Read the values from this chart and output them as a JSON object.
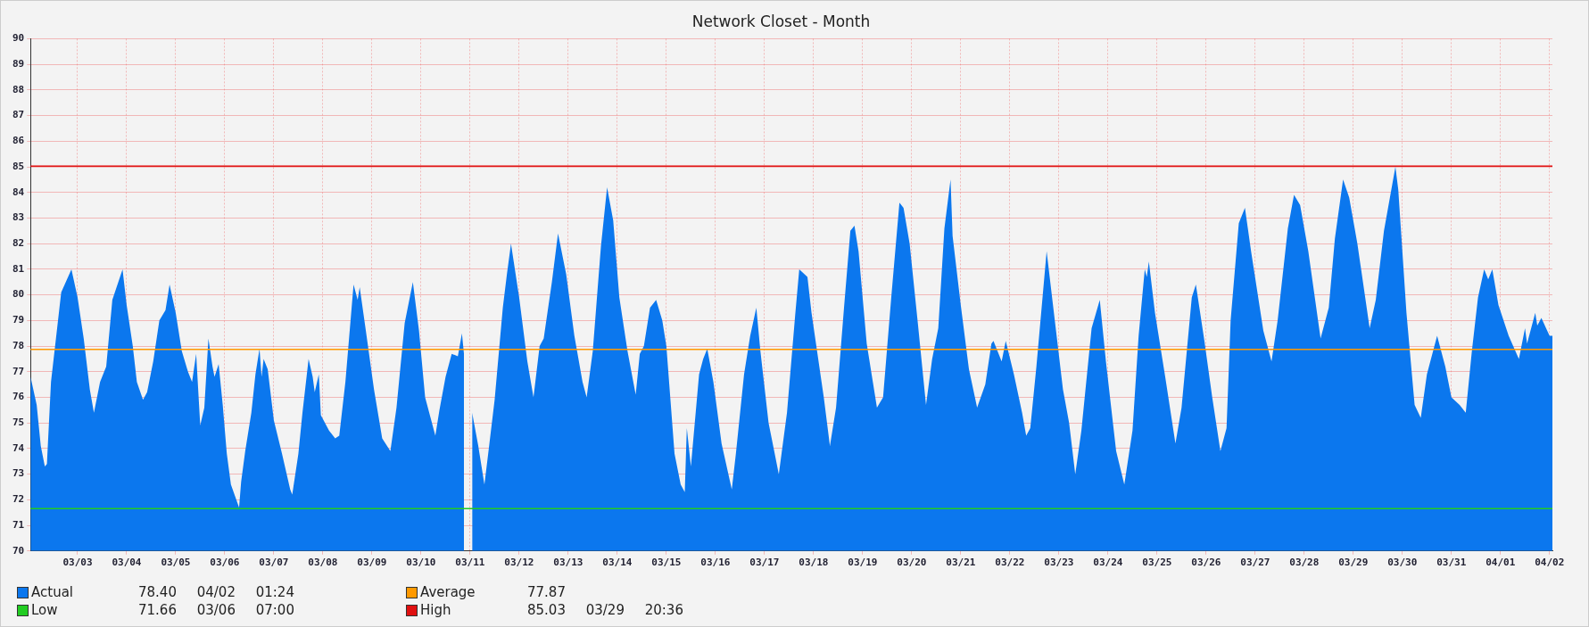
{
  "chart_data": {
    "type": "area",
    "title": "Network Closet - Month",
    "x": [
      "--03-02T01:00",
      "--03-02T04:00",
      "--03-02T06:00",
      "--03-02T08:00",
      "--03-02T09:00",
      "--03-02T11:00",
      "--03-02T13:00",
      "--03-02T16:00",
      "--03-02T21:00",
      "--03-03T00:00",
      "--03-03T03:00",
      "--03-03T06:00",
      "--03-03T08:00",
      "--03-03T11:00",
      "--03-03T14:00",
      "--03-03T17:00",
      "--03-03T22:00",
      "--03-04T00:00",
      "--03-04T03:00",
      "--03-04T05:00",
      "--03-04T08:00",
      "--03-04T10:00",
      "--03-04T13:00",
      "--03-04T16:00",
      "--03-04T19:00",
      "--03-04T21:00",
      "--03-05T00:00",
      "--03-05T03:00",
      "--03-05T06:00",
      "--03-05T08:00",
      "--03-05T10:00",
      "--03-05T12:00",
      "--03-05T14:00",
      "--03-05T16:00",
      "--03-05T18:00",
      "--03-05T19:00",
      "--03-05T21:00",
      "--03-05T23:00",
      "--03-06T01:00",
      "--03-06T03:00",
      "--03-06T07:00",
      "--03-06T08:00",
      "--03-06T10:00",
      "--03-06T13:00",
      "--03-06T15:00",
      "--03-06T17:00",
      "--03-06T18:00",
      "--03-06T19:00",
      "--03-06T21:00",
      "--03-07T00:00",
      "--03-07T04:00",
      "--03-07T08:00",
      "--03-07T09:00",
      "--03-07T12:00",
      "--03-07T14:00",
      "--03-07T17:00",
      "--03-07T19:00",
      "--03-07T20:00",
      "--03-07T22:00",
      "--03-07T23:00",
      "--03-08T03:00",
      "--03-08T06:00",
      "--03-08T08:00",
      "--03-08T11:00",
      "--03-08T15:00",
      "--03-08T17:00",
      "--03-08T18:00",
      "--03-08T21:00",
      "--03-09T01:00",
      "--03-09T05:00",
      "--03-09T09:00",
      "--03-09T12:00",
      "--03-09T16:00",
      "--03-09T20:00",
      "--03-09T23:00",
      "--03-10T02:00",
      "--03-10T07:00",
      "--03-10T09:00",
      "--03-10T12:00",
      "--03-10T15:00",
      "--03-10T18:00",
      "--03-10T20:00",
      "--03-10T21:00",
      "--03-10T23:00",
      "--03-11T00:00",
      "--03-11T01:00",
      "--03-11T04:00",
      "--03-11T07:00",
      "--03-11T09:00",
      "--03-11T12:00",
      "--03-11T16:00",
      "--03-11T18:00",
      "--03-11T20:00",
      "--03-12T00:00",
      "--03-12T04:00",
      "--03-12T07:00",
      "--03-12T10:00",
      "--03-12T12:00",
      "--03-12T16:00",
      "--03-12T19:00",
      "--03-12T23:00",
      "--03-13T03:00",
      "--03-13T07:00",
      "--03-13T09:00",
      "--03-13T12:00",
      "--03-13T16:00",
      "--03-13T19:00",
      "--03-13T22:00",
      "--03-14T01:00",
      "--03-14T05:00",
      "--03-14T09:00",
      "--03-14T11:00",
      "--03-14T13:00",
      "--03-14T16:00",
      "--03-14T19:00",
      "--03-14T22:00",
      "--03-15T00:00",
      "--03-15T04:00",
      "--03-15T07:00",
      "--03-15T09:00",
      "--03-15T10:00",
      "--03-15T12:00",
      "--03-15T16:00",
      "--03-15T18:00",
      "--03-15T20:00",
      "--03-15T23:00",
      "--03-16T03:00",
      "--03-16T08:00",
      "--03-16T10:00",
      "--03-16T14:00",
      "--03-16T17:00",
      "--03-16T20:00",
      "--03-16T22:00",
      "--03-17T02:00",
      "--03-17T07:00",
      "--03-17T11:00",
      "--03-17T15:00",
      "--03-17T17:00",
      "--03-17T21:00",
      "--03-17T23:00",
      "--03-18T05:00",
      "--03-18T08:00",
      "--03-18T11:00",
      "--03-18T15:00",
      "--03-18T18:00",
      "--03-18T20:00",
      "--03-18T22:00",
      "--03-19T02:00",
      "--03-19T07:00",
      "--03-19T10:00",
      "--03-19T14:00",
      "--03-19T18:00",
      "--03-19T20:00",
      "--03-19T23:00",
      "--03-20T03:00",
      "--03-20T07:00",
      "--03-20T10:00",
      "--03-20T13:00",
      "--03-20T16:00",
      "--03-20T19:00",
      "--03-20T20:00",
      "--03-21T00:00",
      "--03-21T04:00",
      "--03-21T08:00",
      "--03-21T12:00",
      "--03-21T15:00",
      "--03-21T16:00",
      "--03-21T20:00",
      "--03-21T22:00",
      "--03-22T02:00",
      "--03-22T06:00",
      "--03-22T08:00",
      "--03-22T10:00",
      "--03-22T13:00",
      "--03-22T18:00",
      "--03-22T22:00",
      "--03-23T02:00",
      "--03-23T05:00",
      "--03-23T08:00",
      "--03-23T11:00",
      "--03-23T16:00",
      "--03-23T20:00",
      "--03-23T23:00",
      "--03-24T04:00",
      "--03-24T08:00",
      "--03-24T12:00",
      "--03-24T15:00",
      "--03-24T18:00",
      "--03-24T19:00",
      "--03-24T20:00",
      "--03-24T23:00",
      "--03-25T04:00",
      "--03-25T09:00",
      "--03-25T12:00",
      "--03-25T17:00",
      "--03-25T19:00",
      "--03-25T23:00",
      "--03-26T03:00",
      "--03-26T07:00",
      "--03-26T10:00",
      "--03-26T12:00",
      "--03-26T16:00",
      "--03-26T19:00",
      "--03-26T22:00",
      "--03-27T04:00",
      "--03-27T08:00",
      "--03-27T11:00",
      "--03-27T16:00",
      "--03-27T19:00",
      "--03-27T22:00",
      "--03-28T02:00",
      "--03-28T08:00",
      "--03-28T12:00",
      "--03-28T15:00",
      "--03-28T19:00",
      "--03-28T22:00",
      "--03-29T02:00",
      "--03-29T08:00",
      "--03-29T11:00",
      "--03-29T15:00",
      "--03-29T20:36",
      "--03-29T22:00",
      "--03-30T02:00",
      "--03-30T06:00",
      "--03-30T09:00",
      "--03-30T12:00",
      "--03-30T17:00",
      "--03-30T21:00",
      "--03-31T00:00",
      "--03-31T04:00",
      "--03-31T07:00",
      "--03-31T10:00",
      "--03-31T13:00",
      "--03-31T16:00",
      "--03-31T18:00",
      "--03-31T20:00",
      "--03-31T23:00",
      "--04-01T04:00",
      "--04-01T09:00",
      "--04-01T12:00",
      "--04-01T13:00",
      "--04-01T17:00",
      "--04-01T18:00",
      "--04-01T20:00",
      "--04-02T00:00",
      "--04-02T01:24"
    ],
    "series": [
      {
        "name": "Actual",
        "color": "#0b77ee",
        "values": [
          76.8,
          75.7,
          74.1,
          73.3,
          73.4,
          76.6,
          78.0,
          80.1,
          81.0,
          79.9,
          78.3,
          76.3,
          75.4,
          76.6,
          77.2,
          79.8,
          81.0,
          79.6,
          78.0,
          76.6,
          75.9,
          76.2,
          77.4,
          79.0,
          79.4,
          80.4,
          79.3,
          77.8,
          77.0,
          76.6,
          77.7,
          74.9,
          75.6,
          78.3,
          77.2,
          76.8,
          77.3,
          75.7,
          73.8,
          72.6,
          71.7,
          72.7,
          73.9,
          75.4,
          76.9,
          77.9,
          76.8,
          77.5,
          77.1,
          75.1,
          73.8,
          72.4,
          72.2,
          73.8,
          75.4,
          77.5,
          76.8,
          76.2,
          76.9,
          75.3,
          74.7,
          74.4,
          74.5,
          76.6,
          80.4,
          79.8,
          80.3,
          78.6,
          76.3,
          74.4,
          73.9,
          75.6,
          78.9,
          80.5,
          78.6,
          76.0,
          74.5,
          75.5,
          76.8,
          77.7,
          77.6,
          78.5,
          77.7,
          null,
          null,
          75.4,
          74.1,
          72.6,
          73.9,
          75.9,
          79.5,
          80.8,
          82.0,
          79.9,
          77.4,
          76.0,
          78.0,
          78.3,
          80.5,
          82.4,
          80.8,
          78.4,
          76.6,
          76.0,
          77.8,
          81.9,
          84.2,
          82.9,
          79.9,
          77.8,
          76.1,
          77.7,
          78.0,
          79.5,
          79.8,
          79.0,
          78.0,
          73.8,
          72.6,
          72.3,
          74.8,
          73.3,
          76.9,
          77.5,
          77.9,
          76.6,
          74.2,
          72.4,
          73.8,
          76.9,
          78.4,
          79.5,
          77.8,
          75.0,
          73.0,
          75.4,
          79.2,
          81.0,
          80.7,
          79.3,
          76.0,
          74.1,
          75.6,
          79.6,
          82.5,
          82.7,
          81.7,
          78.1,
          75.6,
          76.0,
          79.9,
          83.6,
          83.4,
          82.0,
          78.9,
          75.7,
          77.5,
          78.7,
          82.6,
          84.5,
          82.3,
          79.6,
          77.1,
          75.6,
          76.5,
          78.1,
          78.2,
          77.4,
          78.2,
          76.9,
          75.4,
          74.5,
          74.8,
          77.2,
          81.7,
          79.0,
          76.3,
          75.0,
          73.0,
          74.7,
          78.7,
          79.8,
          77.4,
          73.9,
          72.6,
          74.7,
          78.4,
          81.0,
          80.7,
          81.3,
          79.3,
          76.8,
          74.2,
          75.6,
          79.9,
          80.4,
          78.3,
          76.0,
          73.9,
          74.8,
          79.0,
          82.8,
          83.4,
          81.7,
          78.6,
          77.4,
          79.0,
          82.6,
          83.9,
          83.5,
          81.7,
          78.3,
          79.5,
          82.2,
          84.5,
          83.8,
          82.0,
          78.7,
          79.8,
          82.5,
          85.0,
          84.1,
          79.3,
          75.7,
          75.2,
          76.9,
          78.4,
          77.2,
          76.0,
          75.7,
          75.4,
          77.8,
          79.9,
          81.0,
          80.6,
          81.0,
          79.6,
          78.4,
          77.5,
          78.7,
          78.1,
          79.3,
          78.8,
          79.1,
          78.4,
          78.4
        ]
      }
    ],
    "xlim": [
      "--03-02T01:00",
      "--04-02T01:24"
    ],
    "xticks": [
      {
        "value": "--03-03",
        "label": "03/03"
      },
      {
        "value": "--03-04",
        "label": "03/04"
      },
      {
        "value": "--03-05",
        "label": "03/05"
      },
      {
        "value": "--03-06",
        "label": "03/06"
      },
      {
        "value": "--03-07",
        "label": "03/07"
      },
      {
        "value": "--03-08",
        "label": "03/08"
      },
      {
        "value": "--03-09",
        "label": "03/09"
      },
      {
        "value": "--03-10",
        "label": "03/10"
      },
      {
        "value": "--03-11",
        "label": "03/11"
      },
      {
        "value": "--03-12",
        "label": "03/12"
      },
      {
        "value": "--03-13",
        "label": "03/13"
      },
      {
        "value": "--03-14",
        "label": "03/14"
      },
      {
        "value": "--03-15",
        "label": "03/15"
      },
      {
        "value": "--03-16",
        "label": "03/16"
      },
      {
        "value": "--03-17",
        "label": "03/17"
      },
      {
        "value": "--03-18",
        "label": "03/18"
      },
      {
        "value": "--03-19",
        "label": "03/19"
      },
      {
        "value": "--03-20",
        "label": "03/20"
      },
      {
        "value": "--03-21",
        "label": "03/21"
      },
      {
        "value": "--03-22",
        "label": "03/22"
      },
      {
        "value": "--03-23",
        "label": "03/23"
      },
      {
        "value": "--03-24",
        "label": "03/24"
      },
      {
        "value": "--03-25",
        "label": "03/25"
      },
      {
        "value": "--03-26",
        "label": "03/26"
      },
      {
        "value": "--03-27",
        "label": "03/27"
      },
      {
        "value": "--03-28",
        "label": "03/28"
      },
      {
        "value": "--03-29",
        "label": "03/29"
      },
      {
        "value": "--03-30",
        "label": "03/30"
      },
      {
        "value": "--03-31",
        "label": "03/31"
      },
      {
        "value": "--04-01",
        "label": "04/01"
      },
      {
        "value": "--04-02",
        "label": "04/02"
      }
    ],
    "ylim": [
      70,
      90
    ],
    "yticks": [
      70,
      71,
      72,
      73,
      74,
      75,
      76,
      77,
      78,
      79,
      80,
      81,
      82,
      83,
      84,
      85,
      86,
      87,
      88,
      89,
      90
    ],
    "ref_lines": [
      {
        "axis": "y",
        "value": 77.87,
        "label": "Average",
        "color": "#ff9900"
      },
      {
        "axis": "y",
        "value": 71.66,
        "label": "Low",
        "color": "#22cc22"
      },
      {
        "axis": "y",
        "value": 85.03,
        "label": "High",
        "color": "#e01010"
      }
    ],
    "annotations": [
      "78.40 04/02 01:24",
      "77.87",
      "71.66 03/06 07:00",
      "85.03 03/29 20:36"
    ],
    "grid": true,
    "legend": "bottom left",
    "marker": "none"
  }
}
